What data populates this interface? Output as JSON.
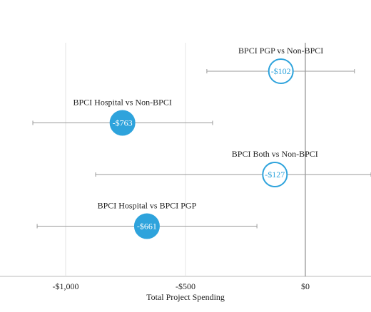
{
  "chart_data": {
    "type": "dot-whisker",
    "x_label": "Total Project Spending",
    "xlim": [
      -1274,
      274
    ],
    "xticks": [
      {
        "value": -1000,
        "label": "-$1,000"
      },
      {
        "value": -500,
        "label": "-$500"
      },
      {
        "value": 0,
        "label": "$0"
      }
    ],
    "grid": true,
    "series": [
      {
        "name": "BPCI PGP vs Non-BPCI",
        "values": [
          -102
        ],
        "value_labels": [
          "-$102"
        ],
        "lower": [
          -411
        ],
        "upper": [
          205
        ],
        "color": "#2ea3dc",
        "filled": false
      },
      {
        "name": "BPCI Hospital vs Non-BPCI",
        "values": [
          -763
        ],
        "value_labels": [
          "-$763"
        ],
        "lower": [
          -1137
        ],
        "upper": [
          -387
        ],
        "color": "#2ea3dc",
        "filled": true
      },
      {
        "name": "BPCI Both vs Non-BPCI",
        "values": [
          -127
        ],
        "value_labels": [
          "-$127"
        ],
        "lower": [
          -875
        ],
        "upper": [
          274
        ],
        "color": "#2ea3dc",
        "filled": false
      },
      {
        "name": "BPCI Hospital vs BPCI PGP",
        "values": [
          -661
        ],
        "value_labels": [
          "-$661"
        ],
        "lower": [
          -1119
        ],
        "upper": [
          -202
        ],
        "color": "#2ea3dc",
        "filled": true
      }
    ]
  }
}
